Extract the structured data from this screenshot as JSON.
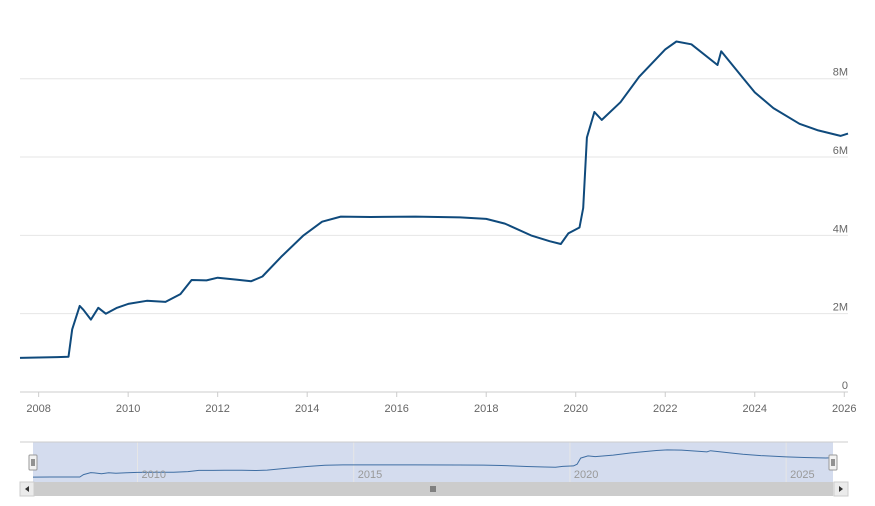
{
  "chart_data": {
    "type": "line",
    "title": "",
    "xlabel": "",
    "ylabel": "",
    "y_unit": "M",
    "ylim": [
      0,
      9500000
    ],
    "xlim": [
      "2007-08",
      "2026-02"
    ],
    "y_ticks": [
      {
        "value": 0,
        "label": "0"
      },
      {
        "value": 2000000,
        "label": "2M"
      },
      {
        "value": 4000000,
        "label": "4M"
      },
      {
        "value": 6000000,
        "label": "6M"
      },
      {
        "value": 8000000,
        "label": "8M"
      }
    ],
    "x_ticks": [
      "2008",
      "2010",
      "2012",
      "2014",
      "2016",
      "2018",
      "2020",
      "2022",
      "2024",
      "2026"
    ],
    "grid": true,
    "legend": "none",
    "series": [
      {
        "color": "#0f4a7c",
        "points": [
          [
            "2007-08",
            870000
          ],
          [
            "2008-01",
            880000
          ],
          [
            "2008-06",
            890000
          ],
          [
            "2008-09",
            900000
          ],
          [
            "2008-10",
            1600000
          ],
          [
            "2008-12",
            2200000
          ],
          [
            "2009-01",
            2100000
          ],
          [
            "2009-03",
            1850000
          ],
          [
            "2009-05",
            2150000
          ],
          [
            "2009-07",
            2000000
          ],
          [
            "2009-10",
            2150000
          ],
          [
            "2010-01",
            2250000
          ],
          [
            "2010-06",
            2330000
          ],
          [
            "2010-11",
            2300000
          ],
          [
            "2011-03",
            2500000
          ],
          [
            "2011-06",
            2860000
          ],
          [
            "2011-10",
            2850000
          ],
          [
            "2012-01",
            2920000
          ],
          [
            "2012-06",
            2870000
          ],
          [
            "2012-10",
            2830000
          ],
          [
            "2013-01",
            2950000
          ],
          [
            "2013-06",
            3450000
          ],
          [
            "2013-12",
            4000000
          ],
          [
            "2014-05",
            4350000
          ],
          [
            "2014-10",
            4480000
          ],
          [
            "2015-06",
            4470000
          ],
          [
            "2016-06",
            4480000
          ],
          [
            "2017-06",
            4460000
          ],
          [
            "2018-01",
            4420000
          ],
          [
            "2018-06",
            4300000
          ],
          [
            "2019-01",
            4000000
          ],
          [
            "2019-06",
            3850000
          ],
          [
            "2019-09",
            3780000
          ],
          [
            "2019-11",
            4050000
          ],
          [
            "2020-02",
            4200000
          ],
          [
            "2020-03",
            4700000
          ],
          [
            "2020-04",
            6500000
          ],
          [
            "2020-06",
            7150000
          ],
          [
            "2020-08",
            6950000
          ],
          [
            "2021-01",
            7400000
          ],
          [
            "2021-06",
            8050000
          ],
          [
            "2022-01",
            8750000
          ],
          [
            "2022-04",
            8950000
          ],
          [
            "2022-08",
            8880000
          ],
          [
            "2023-03",
            8350000
          ],
          [
            "2023-04",
            8700000
          ],
          [
            "2023-10",
            8000000
          ],
          [
            "2024-01",
            7650000
          ],
          [
            "2024-06",
            7250000
          ],
          [
            "2025-01",
            6850000
          ],
          [
            "2025-06",
            6680000
          ],
          [
            "2025-12",
            6540000
          ],
          [
            "2026-02",
            6600000
          ]
        ]
      }
    ],
    "navigator": {
      "x_labels": [
        "2010",
        "2015",
        "2020",
        "2025"
      ]
    }
  },
  "colors": {
    "series": "#0f4a7c",
    "navigator_fill": "#ccd6eb",
    "scrollbar_track": "#e6e6e6",
    "scrollbar_thumb": "#cccccc"
  }
}
